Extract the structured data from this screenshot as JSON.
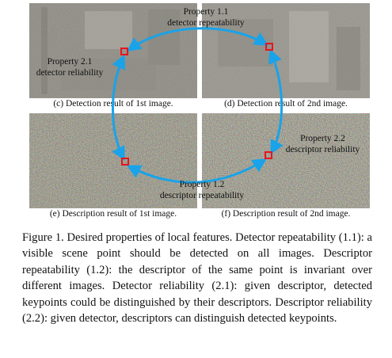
{
  "subcaptions": {
    "c": "(c) Detection result of 1st image.",
    "d": "(d) Detection result of 2nd image.",
    "e": "(e) Description result of 1st image.",
    "f": "(f) Description result of 2nd image."
  },
  "properties": {
    "p11": {
      "line1": "Property 1.1",
      "line2": "detector repeatability"
    },
    "p12": {
      "line1": "Property 1.2",
      "line2": "descriptor repeatability"
    },
    "p21": {
      "line1": "Property 2.1",
      "line2": "detector reliability"
    },
    "p22": {
      "line1": "Property 2.2",
      "line2": "descriptor reliability"
    }
  },
  "caption": "Figure 1. Desired properties of local features. Detector repeatability (1.1): a visible scene point should be detected on all images. Descriptor repeatability (1.2): the descriptor of the same point is invariant over different images. Detector reliability (2.1): given descriptor, detected keypoints could be distinguished by their descriptors. Descriptor reliability (2.2): given detector, descriptors can distinguish detected keypoints.",
  "colors": {
    "arrow": "#1aa3e8",
    "marker": "#e8141e"
  }
}
